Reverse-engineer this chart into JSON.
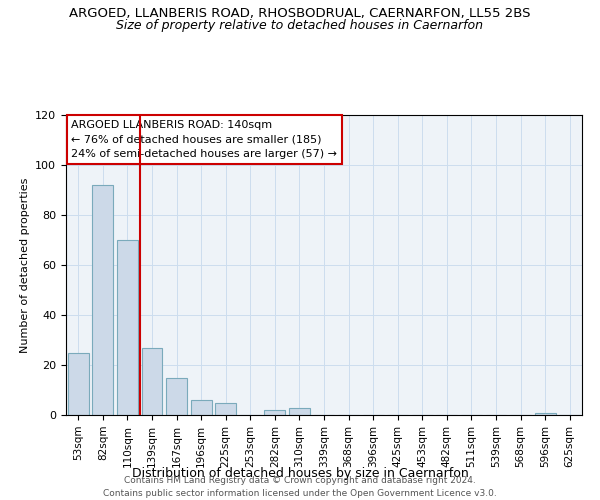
{
  "title": "ARGOED, LLANBERIS ROAD, RHOSBODRUAL, CAERNARFON, LL55 2BS",
  "subtitle": "Size of property relative to detached houses in Caernarfon",
  "xlabel": "Distribution of detached houses by size in Caernarfon",
  "ylabel": "Number of detached properties",
  "bar_labels": [
    "53sqm",
    "82sqm",
    "110sqm",
    "139sqm",
    "167sqm",
    "196sqm",
    "225sqm",
    "253sqm",
    "282sqm",
    "310sqm",
    "339sqm",
    "368sqm",
    "396sqm",
    "425sqm",
    "453sqm",
    "482sqm",
    "511sqm",
    "539sqm",
    "568sqm",
    "596sqm",
    "625sqm"
  ],
  "bar_values": [
    25,
    92,
    70,
    27,
    15,
    6,
    5,
    0,
    2,
    3,
    0,
    0,
    0,
    0,
    0,
    0,
    0,
    0,
    0,
    1,
    0
  ],
  "bar_color": "#ccd9e8",
  "bar_edge_color": "#7aaabb",
  "vline_x": 2.5,
  "vline_color": "#cc0000",
  "annotation_title": "ARGOED LLANBERIS ROAD: 140sqm",
  "annotation_line1": "← 76% of detached houses are smaller (185)",
  "annotation_line2": "24% of semi-detached houses are larger (57) →",
  "annotation_box_color": "#ffffff",
  "annotation_box_edge_color": "#cc0000",
  "ylim": [
    0,
    120
  ],
  "yticks": [
    0,
    20,
    40,
    60,
    80,
    100,
    120
  ],
  "footer1": "Contains HM Land Registry data © Crown copyright and database right 2024.",
  "footer2": "Contains public sector information licensed under the Open Government Licence v3.0.",
  "title_fontsize": 9.5,
  "subtitle_fontsize": 9,
  "ylabel_fontsize": 8,
  "xlabel_fontsize": 9,
  "annotation_fontsize": 8,
  "footer_fontsize": 6.5,
  "tick_fontsize": 7.5,
  "ytick_fontsize": 8
}
